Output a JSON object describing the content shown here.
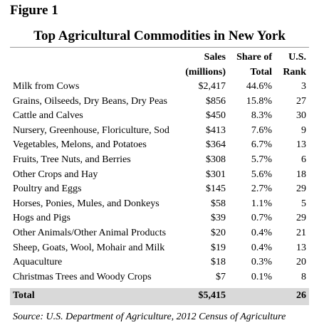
{
  "figure_label": "Figure 1",
  "title": "Top Agricultural Commodities in New York",
  "header": [
    [
      "Sales",
      "Share of",
      "U.S."
    ],
    [
      "(millions)",
      "Total",
      "Rank"
    ]
  ],
  "rows": [
    [
      "Milk from Cows",
      "$2,417",
      "44.6%",
      "3"
    ],
    [
      "Grains, Oilseeds, Dry Beans, Dry Peas",
      "$856",
      "15.8%",
      "27"
    ],
    [
      "Cattle and Calves",
      "$450",
      "8.3%",
      "30"
    ],
    [
      "Nursery, Greenhouse, Floriculture, Sod",
      "$413",
      "7.6%",
      "9"
    ],
    [
      "Vegetables, Melons, and Potatoes",
      "$364",
      "6.7%",
      "13"
    ],
    [
      "Fruits, Tree Nuts, and Berries",
      "$308",
      "5.7%",
      "6"
    ],
    [
      "Other Crops and Hay",
      "$301",
      "5.6%",
      "18"
    ],
    [
      "Poultry and Eggs",
      "$145",
      "2.7%",
      "29"
    ],
    [
      "Horses, Ponies, Mules, and Donkeys",
      "$58",
      "1.1%",
      "5"
    ],
    [
      "Hogs and Pigs",
      "$39",
      "0.7%",
      "29"
    ],
    [
      "Other Animals/Other Animal Products",
      "$20",
      "0.4%",
      "21"
    ],
    [
      "Sheep, Goats, Wool, Mohair and Milk",
      "$19",
      "0.4%",
      "13"
    ],
    [
      "Aquaculture",
      "$18",
      "0.3%",
      "20"
    ],
    [
      "Christmas Trees and Woody Crops",
      "$7",
      "0.1%",
      "8"
    ]
  ],
  "total": {
    "label": "Total",
    "sales": "$5,415",
    "rank": "26"
  },
  "source": "Source: U.S. Department of Agriculture, 2012 Census of Agriculture"
}
